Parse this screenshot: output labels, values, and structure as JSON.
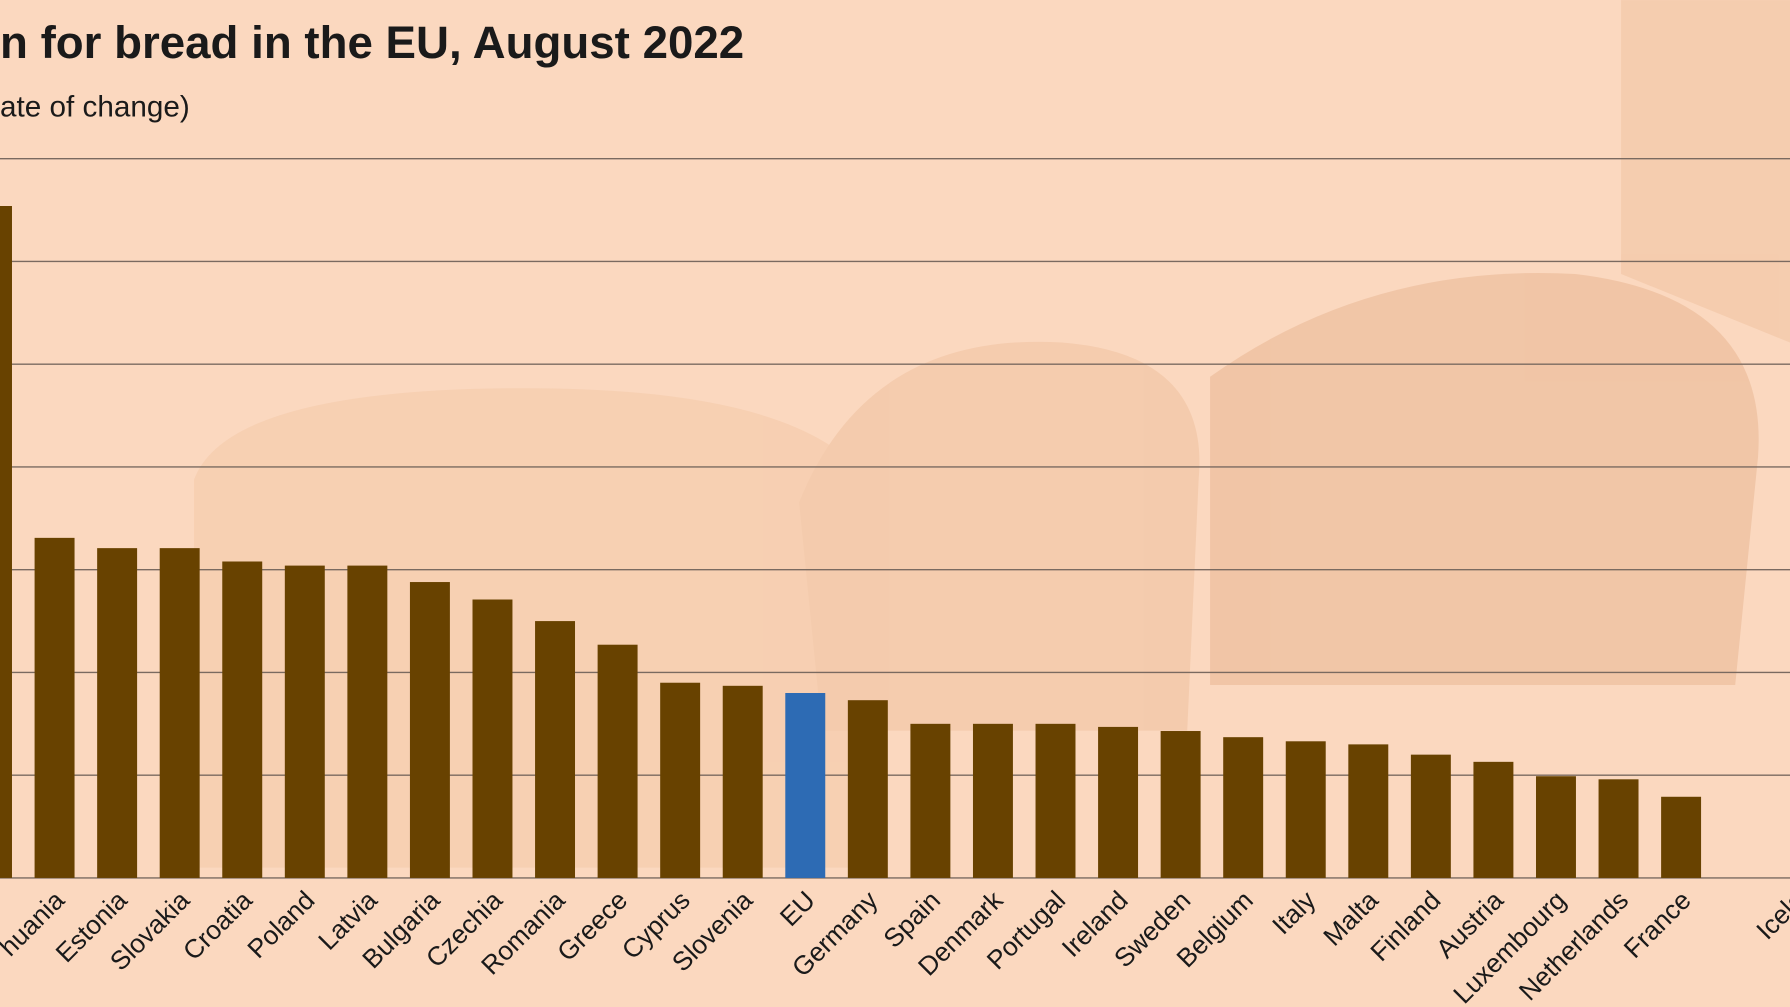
{
  "chart_data": {
    "type": "bar",
    "title": "n for bread in the EU, August 2022",
    "subtitle": "ate of change)",
    "categories": [
      "",
      "huania",
      "Estonia",
      "Slovakia",
      "Croatia",
      "Poland",
      "Latvia",
      "Bulgaria",
      "Czechia",
      "Romania",
      "Greece",
      "Cyprus",
      "Slovenia",
      "EU",
      "Germany",
      "Spain",
      "Denmark",
      "Portugal",
      "Ireland",
      "Sweden",
      "Belgium",
      "Italy",
      "Malta",
      "Finland",
      "Austria",
      "Luxembourg",
      "Netherlands",
      "France",
      "Icela"
    ],
    "values": [
      65.4,
      33.1,
      32.1,
      32.1,
      30.8,
      30.4,
      30.4,
      28.8,
      27.1,
      25.0,
      22.7,
      19.0,
      18.7,
      18.0,
      17.3,
      15.0,
      15.0,
      15.0,
      14.7,
      14.3,
      13.7,
      13.3,
      13.0,
      12.0,
      11.3,
      9.9,
      9.6,
      7.9,
      null
    ],
    "colors": [
      "#684200",
      "#684200",
      "#684200",
      "#684200",
      "#684200",
      "#684200",
      "#684200",
      "#684200",
      "#684200",
      "#684200",
      "#684200",
      "#684200",
      "#684200",
      "#2d6bb4",
      "#684200",
      "#684200",
      "#684200",
      "#684200",
      "#684200",
      "#684200",
      "#684200",
      "#684200",
      "#684200",
      "#684200",
      "#684200",
      "#684200",
      "#684200",
      "#684200",
      "#684200"
    ],
    "ylim": [
      0,
      70
    ],
    "yticks": [
      0,
      10,
      20,
      30,
      40,
      50,
      60,
      70
    ],
    "grid": true
  }
}
